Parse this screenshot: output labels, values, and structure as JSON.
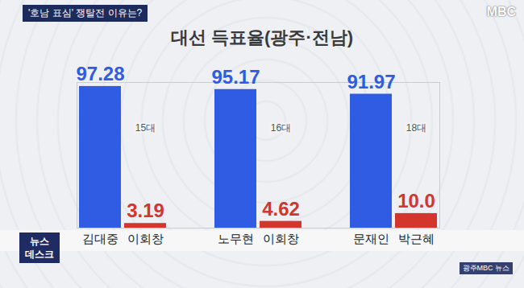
{
  "chart_data": {
    "type": "bar",
    "banner": "'호남 표심' 쟁탈전 이유는?",
    "brand": "MBC",
    "title": "대선 득표율(광주·전남)",
    "logo": [
      "뉴스",
      "데스크"
    ],
    "watermark": "광주MBC 뉴스",
    "categories": [
      "김대중",
      "이회창",
      "노무현",
      "이회창",
      "문재인",
      "박근혜"
    ],
    "groups": [
      "15대",
      "16대",
      "18대"
    ],
    "values": [
      97.28,
      3.19,
      95.17,
      4.62,
      91.97,
      10.0
    ],
    "value_labels": [
      "97.28",
      "3.19",
      "95.17",
      "4.62",
      "91.97",
      "10.0"
    ],
    "colors": [
      "#2f5ce3",
      "#d4352c",
      "#2f5ce3",
      "#d4352c",
      "#2f5ce3",
      "#d4352c"
    ],
    "ylim": [
      0,
      100
    ],
    "yticks": [],
    "data_labels": true,
    "tick_labels": "x",
    "grid": false
  }
}
